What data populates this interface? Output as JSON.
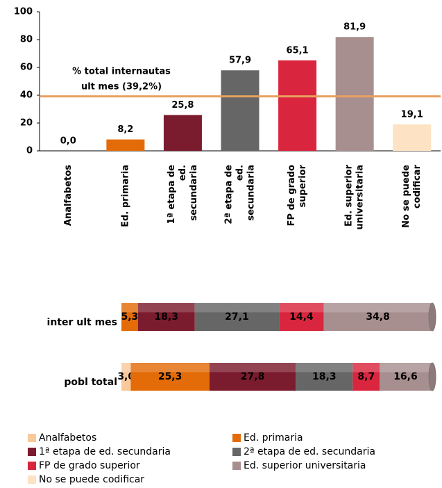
{
  "chart_data": [
    {
      "type": "bar",
      "categories": [
        [
          "Analfabetos"
        ],
        [
          "Ed. primaria"
        ],
        [
          "1ª etapa de",
          "ed.",
          "secundaria"
        ],
        [
          "2ª etapa de",
          "ed.",
          "secundaria"
        ],
        [
          "FP de grado",
          "superior"
        ],
        [
          "Ed. superior",
          "universitaria"
        ],
        [
          "No se puede",
          "codificar"
        ]
      ],
      "values": [
        0.0,
        8.2,
        25.8,
        57.9,
        65.1,
        81.9,
        19.1
      ],
      "value_labels": [
        "0,0",
        "8,2",
        "25,8",
        "57,9",
        "65,1",
        "81,9",
        "19,1"
      ],
      "colors": [
        "#f9c89b",
        "#e36c09",
        "#7b1c2e",
        "#666666",
        "#d9263e",
        "#a88f8f",
        "#fde3c4"
      ],
      "ylim": [
        0,
        100
      ],
      "yticks": [
        0,
        20,
        40,
        60,
        80,
        100
      ],
      "reference_line": {
        "value": 39.2,
        "color": "#e8a060",
        "label": [
          "% total internautas",
          "ult mes (39,2%)"
        ]
      }
    },
    {
      "type": "stacked_bar_horizontal",
      "categories": [
        "inter ult mes",
        "pobl total"
      ],
      "series": [
        {
          "name": "Analfabetos",
          "color": "#f9c89b",
          "values": [
            0.0,
            3.0
          ],
          "value_labels": [
            null,
            "3,0"
          ]
        },
        {
          "name": "Ed. primaria",
          "color": "#e36c09",
          "values": [
            5.3,
            25.3
          ],
          "value_labels": [
            "5,3",
            "25,3"
          ]
        },
        {
          "name": "1ª etapa de ed. secundaria",
          "color": "#7b1c2e",
          "values": [
            18.3,
            27.8
          ],
          "value_labels": [
            "18,3",
            "27,8"
          ]
        },
        {
          "name": "2ª etapa de ed. secundaria",
          "color": "#666666",
          "values": [
            27.1,
            18.3
          ],
          "value_labels": [
            "27,1",
            "18,3"
          ]
        },
        {
          "name": "FP de grado superior",
          "color": "#d9263e",
          "values": [
            14.4,
            8.7
          ],
          "value_labels": [
            "14,4",
            "8,7"
          ]
        },
        {
          "name": "Ed. superior universitaria",
          "color": "#a88f8f",
          "values": [
            34.8,
            16.6
          ],
          "value_labels": [
            "34,8",
            "16,6"
          ]
        },
        {
          "name": "No se puede codificar",
          "color": "#fde3c4",
          "values": [
            0.1,
            0.3
          ],
          "value_labels": [
            null,
            null
          ]
        }
      ]
    }
  ]
}
